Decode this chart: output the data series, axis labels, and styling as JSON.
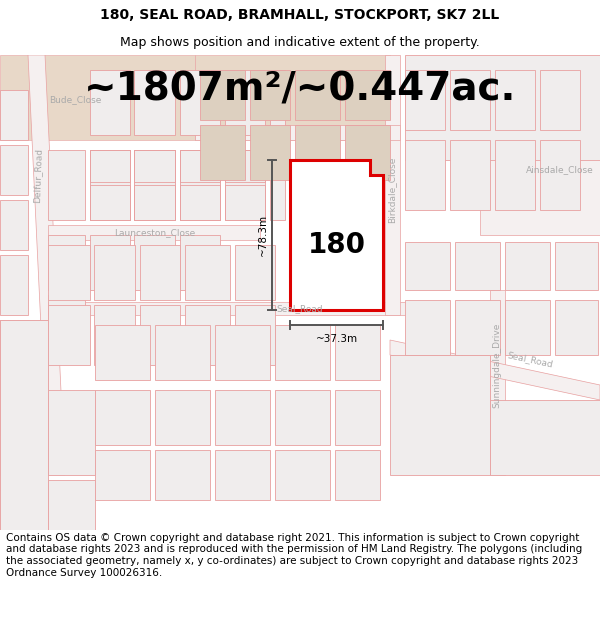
{
  "title_line1": "180, SEAL ROAD, BRAMHALL, STOCKPORT, SK7 2LL",
  "title_line2": "Map shows position and indicative extent of the property.",
  "area_label": "~1807m²/~0.447ac.",
  "property_number": "180",
  "dim_height": "~78.3m",
  "dim_width": "~37.3m",
  "footer_text": "Contains OS data © Crown copyright and database right 2021. This information is subject to Crown copyright and database rights 2023 and is reproduced with the permission of HM Land Registry. The polygons (including the associated geometry, namely x, y co-ordinates) are subject to Crown copyright and database rights 2023 Ordnance Survey 100026316.",
  "bg_color": "#ffffff",
  "map_bg": "#ffffff",
  "line_color": "#e8a0a0",
  "dim_line_color": "#555555",
  "property_outline_color": "#dd0000",
  "property_fill": "#ffffff",
  "highlight_fill": "#e8d8c8",
  "title_fontsize": 10,
  "subtitle_fontsize": 9,
  "area_fontsize": 28,
  "footer_fontsize": 7.5,
  "street_label_color": "#aaaaaa",
  "street_label_fs": 6.5
}
